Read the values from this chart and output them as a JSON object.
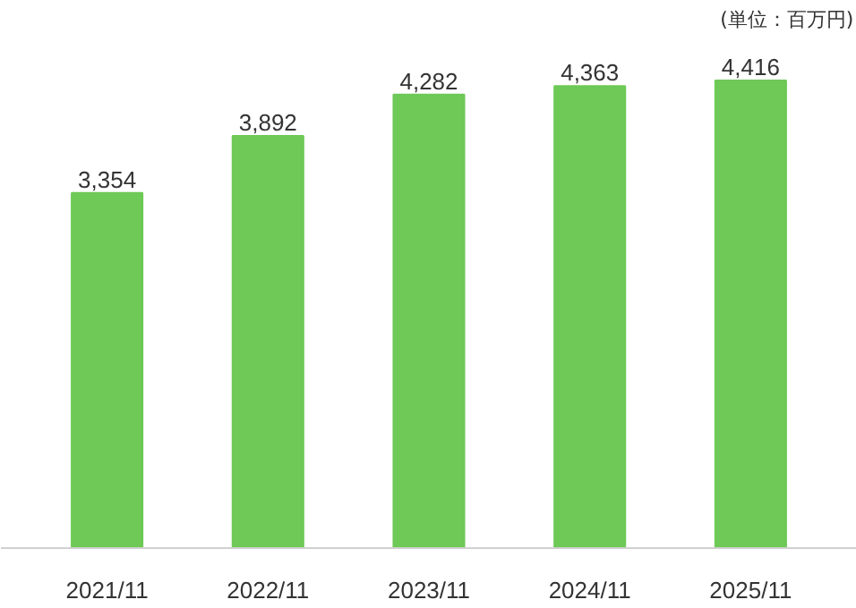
{
  "chart_data": {
    "type": "bar",
    "categories": [
      "2021/11",
      "2022/11",
      "2023/11",
      "2024/11",
      "2025/11"
    ],
    "values": [
      3354,
      3892,
      4282,
      4363,
      4416
    ],
    "value_labels": [
      "3,354",
      "3,892",
      "4,282",
      "4,363",
      "4,416"
    ],
    "color": "#6ec957",
    "annotations": [
      "(単位：百万円)"
    ],
    "grid": false
  }
}
